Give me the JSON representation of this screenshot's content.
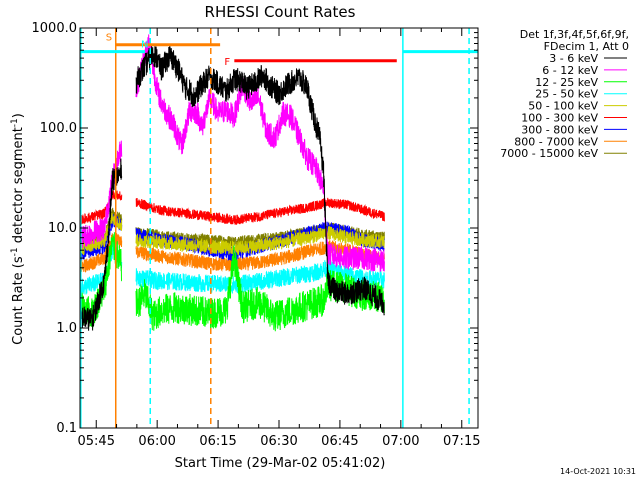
{
  "chart_data": {
    "type": "line",
    "title": "RHESSI Count Rates",
    "xlabel": "Start Time (29-Mar-02 05:41:02)",
    "ylabel": "Count Rate (s",
    "ylabel_sup": "-1",
    "ylabel_rest": " detector segment",
    "ylabel_sup2": "-1",
    "ylabel_end": ")",
    "y_scale": "log",
    "ylim": [
      0.1,
      1000
    ],
    "xlim": [
      "05:41:00",
      "07:19:00"
    ],
    "y_ticks": [
      "0.1",
      "1.0",
      "10.0",
      "100.0",
      "1000.0"
    ],
    "x_ticks": [
      "05:45",
      "06:00",
      "06:15",
      "06:30",
      "06:45",
      "07:00",
      "07:15"
    ],
    "legend_header": [
      "Det 1f,3f,4f,5f,6f,9f,",
      "FDecim 1, Att 0"
    ],
    "legend_position": "right",
    "series": [
      {
        "name": "3 - 6 keV",
        "color": "#000000",
        "values": [
          [
            0,
            1.3
          ],
          [
            3,
            1.2
          ],
          [
            6,
            3
          ],
          [
            7,
            8
          ],
          [
            8,
            30
          ],
          [
            9.9,
            35
          ],
          [
            14,
            300
          ],
          [
            16,
            420
          ],
          [
            18,
            550
          ],
          [
            19,
            500
          ],
          [
            20,
            380
          ],
          [
            21,
            450
          ],
          [
            22,
            520
          ],
          [
            23,
            470
          ],
          [
            24,
            400
          ],
          [
            25,
            320
          ],
          [
            26,
            250
          ],
          [
            27,
            240
          ],
          [
            28,
            200
          ],
          [
            30,
            270
          ],
          [
            32,
            330
          ],
          [
            34,
            280
          ],
          [
            36,
            230
          ],
          [
            38,
            310
          ],
          [
            40,
            290
          ],
          [
            41,
            250
          ],
          [
            43,
            280
          ],
          [
            45,
            340
          ],
          [
            47,
            260
          ],
          [
            49,
            220
          ],
          [
            51,
            270
          ],
          [
            54,
            320
          ],
          [
            56,
            250
          ],
          [
            57,
            160
          ],
          [
            58,
            110
          ],
          [
            59,
            80
          ],
          [
            60,
            35
          ],
          [
            61,
            3
          ],
          [
            63,
            2.3
          ],
          [
            66,
            2.2
          ],
          [
            70,
            2.5
          ],
          [
            73,
            2.0
          ],
          [
            75,
            1.7
          ]
        ]
      },
      {
        "name": "6 - 12 keV",
        "color": "#ff00ff",
        "values": [
          [
            0,
            8
          ],
          [
            6,
            10
          ],
          [
            8,
            30
          ],
          [
            14,
            250
          ],
          [
            16,
            550
          ],
          [
            17,
            720
          ],
          [
            18,
            400
          ],
          [
            19,
            250
          ],
          [
            20,
            180
          ],
          [
            21,
            150
          ],
          [
            23,
            110
          ],
          [
            25,
            65
          ],
          [
            27,
            150
          ],
          [
            29,
            140
          ],
          [
            30,
            100
          ],
          [
            32,
            200
          ],
          [
            34,
            140
          ],
          [
            36,
            150
          ],
          [
            38,
            130
          ],
          [
            40,
            270
          ],
          [
            42,
            180
          ],
          [
            44,
            200
          ],
          [
            46,
            90
          ],
          [
            48,
            80
          ],
          [
            50,
            140
          ],
          [
            52,
            130
          ],
          [
            54,
            80
          ],
          [
            56,
            50
          ],
          [
            58,
            40
          ],
          [
            60,
            25
          ],
          [
            61,
            5.5
          ],
          [
            65,
            5
          ],
          [
            70,
            5
          ],
          [
            75,
            4.7
          ]
        ]
      },
      {
        "name": "12 - 25 keV",
        "color": "#00ff00",
        "values": [
          [
            0,
            1.6
          ],
          [
            3,
            1.4
          ],
          [
            6,
            2.5
          ],
          [
            8,
            7
          ],
          [
            14,
            1.7
          ],
          [
            16,
            2.2
          ],
          [
            18,
            1.3
          ],
          [
            20,
            1.5
          ],
          [
            24,
            1.6
          ],
          [
            28,
            1.5
          ],
          [
            32,
            1.4
          ],
          [
            36,
            1.5
          ],
          [
            38,
            5
          ],
          [
            40,
            1.6
          ],
          [
            44,
            1.8
          ],
          [
            48,
            1.3
          ],
          [
            52,
            1.5
          ],
          [
            56,
            1.7
          ],
          [
            60,
            1.9
          ],
          [
            61,
            2.7
          ],
          [
            65,
            2.5
          ],
          [
            70,
            2.1
          ],
          [
            75,
            2.0
          ]
        ]
      },
      {
        "name": "25 - 50 keV",
        "color": "#00ffff",
        "values": [
          [
            0,
            2.5
          ],
          [
            6,
            3
          ],
          [
            8,
            6
          ],
          [
            14,
            3.2
          ],
          [
            18,
            3.0
          ],
          [
            24,
            2.9
          ],
          [
            30,
            2.8
          ],
          [
            38,
            2.7
          ],
          [
            44,
            2.9
          ],
          [
            52,
            3.3
          ],
          [
            58,
            3.6
          ],
          [
            61,
            4
          ],
          [
            66,
            3.4
          ],
          [
            70,
            3.1
          ],
          [
            75,
            3.0
          ]
        ]
      },
      {
        "name": "50 - 100 keV",
        "color": "#cccc00",
        "values": [
          [
            0,
            6
          ],
          [
            6,
            7.5
          ],
          [
            8,
            13
          ],
          [
            14,
            7.5
          ],
          [
            20,
            7.2
          ],
          [
            26,
            6.8
          ],
          [
            32,
            6.5
          ],
          [
            38,
            6.3
          ],
          [
            44,
            6.6
          ],
          [
            50,
            7.2
          ],
          [
            56,
            8
          ],
          [
            61,
            9
          ],
          [
            66,
            8
          ],
          [
            70,
            7.6
          ],
          [
            75,
            7.3
          ]
        ]
      },
      {
        "name": "100 - 300 keV",
        "color": "#ff0000",
        "values": [
          [
            0,
            12
          ],
          [
            6,
            14
          ],
          [
            8,
            22
          ],
          [
            14,
            18
          ],
          [
            20,
            15
          ],
          [
            26,
            14
          ],
          [
            32,
            13
          ],
          [
            38,
            12
          ],
          [
            44,
            13
          ],
          [
            50,
            14.5
          ],
          [
            56,
            16
          ],
          [
            61,
            18
          ],
          [
            66,
            17
          ],
          [
            70,
            15
          ],
          [
            75,
            13
          ]
        ]
      },
      {
        "name": "300 - 800 keV",
        "color": "#0000ff",
        "values": [
          [
            0,
            5.5
          ],
          [
            6,
            6.5
          ],
          [
            8,
            12
          ],
          [
            14,
            8.5
          ],
          [
            20,
            7.5
          ],
          [
            26,
            7
          ],
          [
            32,
            6
          ],
          [
            38,
            5.5
          ],
          [
            44,
            6.5
          ],
          [
            50,
            7.5
          ],
          [
            56,
            9
          ],
          [
            61,
            10
          ],
          [
            66,
            9
          ],
          [
            70,
            7.5
          ],
          [
            75,
            6.8
          ]
        ]
      },
      {
        "name": "800 - 7000 keV",
        "color": "#ff8000",
        "values": [
          [
            0,
            4
          ],
          [
            6,
            5
          ],
          [
            8,
            8
          ],
          [
            14,
            5.8
          ],
          [
            20,
            5.2
          ],
          [
            26,
            4.8
          ],
          [
            32,
            4.4
          ],
          [
            38,
            4.3
          ],
          [
            44,
            4.5
          ],
          [
            50,
            5
          ],
          [
            56,
            5.8
          ],
          [
            61,
            6.5
          ],
          [
            66,
            6
          ],
          [
            70,
            5.4
          ],
          [
            75,
            4.8
          ]
        ]
      },
      {
        "name": "7000 - 15000 keV",
        "color": "#808000",
        "values": [
          [
            0,
            7
          ],
          [
            6,
            8
          ],
          [
            8,
            14
          ],
          [
            14,
            9
          ],
          [
            20,
            8.3
          ],
          [
            26,
            7.8
          ],
          [
            32,
            7.5
          ],
          [
            38,
            7.3
          ],
          [
            44,
            7.6
          ],
          [
            50,
            8.2
          ],
          [
            56,
            9
          ],
          [
            61,
            10
          ],
          [
            66,
            9.2
          ],
          [
            70,
            8.5
          ],
          [
            75,
            8
          ]
        ]
      }
    ],
    "segments": [
      {
        "label": "S",
        "color": "#ff8000",
        "y": 680,
        "x_from": 8.8,
        "x_to": 34.5
      },
      {
        "label": "N",
        "color": "#00ffff",
        "y": 580,
        "x_from": 0,
        "x_to": 16
      },
      {
        "label": "F",
        "color": "#ff0000",
        "y": 470,
        "x_from": 38,
        "x_to": 78
      },
      {
        "label": "",
        "color": "#00ffff",
        "y": 580,
        "x_from": 79.5,
        "x_to": 98
      }
    ],
    "vertical_lines": [
      {
        "x": 0.2,
        "color": "#00ffff",
        "style": "solid"
      },
      {
        "x": 8.8,
        "color": "#ff8000",
        "style": "solid"
      },
      {
        "x": 17.3,
        "color": "#00ffff",
        "style": "dashed"
      },
      {
        "x": 32.2,
        "color": "#ff8000",
        "style": "dashed"
      },
      {
        "x": 79.5,
        "color": "#00ffff",
        "style": "solid"
      },
      {
        "x": 95.8,
        "color": "#00ffff",
        "style": "dashed"
      }
    ],
    "grid": false
  },
  "footer": {
    "timestamp": "14-Oct-2021 10:31"
  }
}
